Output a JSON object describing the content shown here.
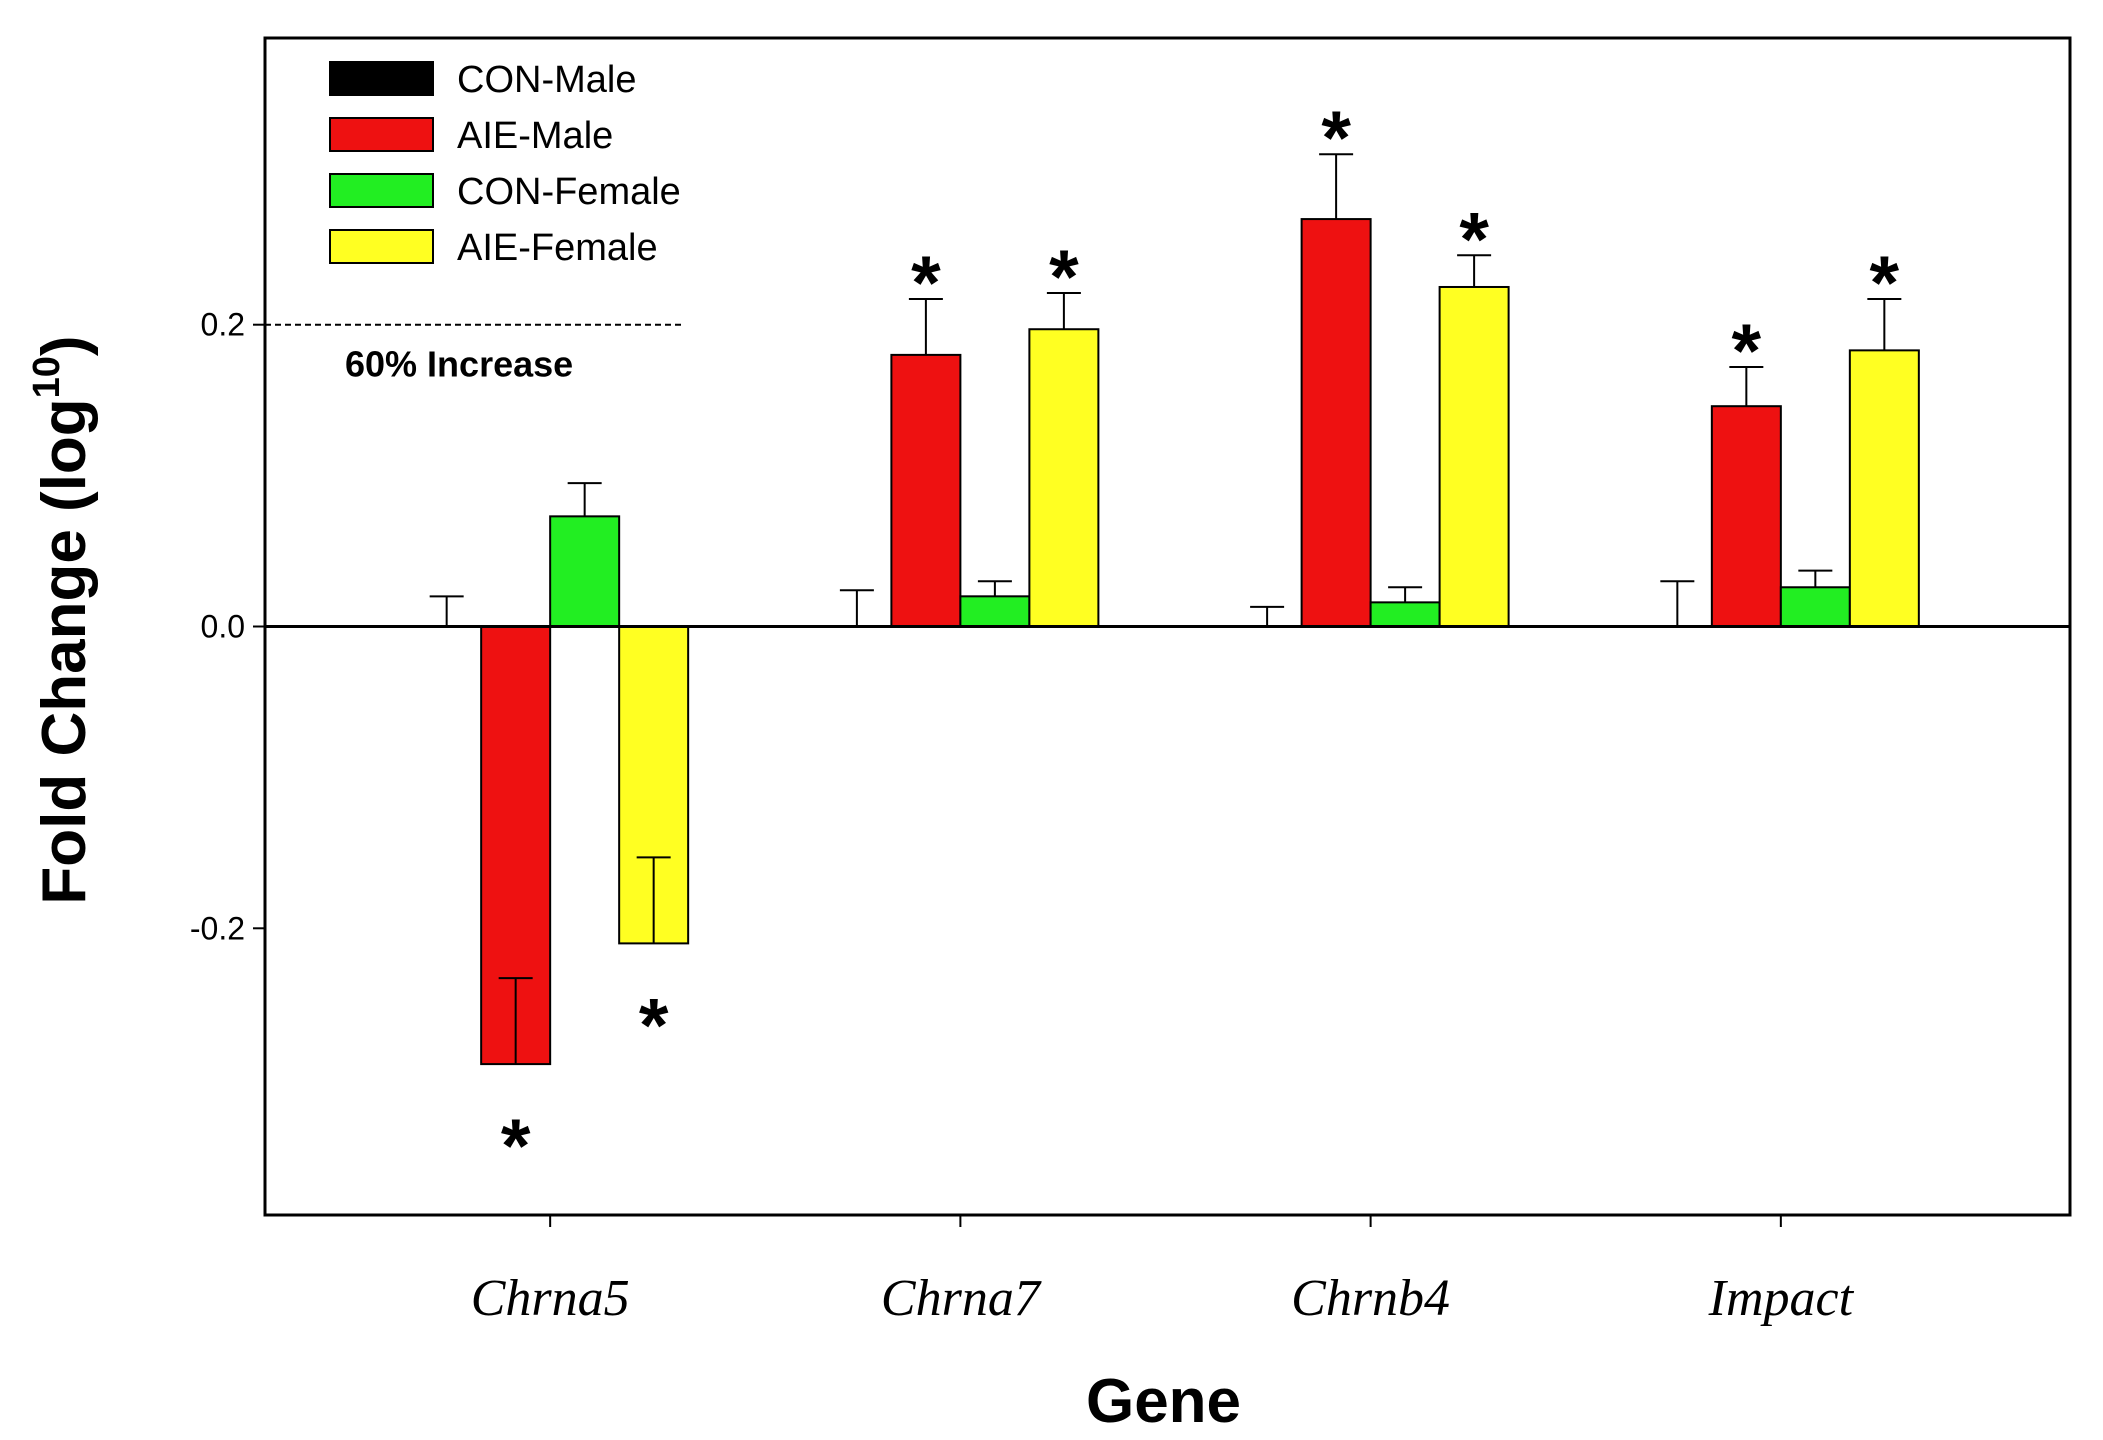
{
  "chart_data": {
    "type": "bar",
    "xlabel": "Gene",
    "ylabel": "Fold Change (log",
    "ylabel_sup": "10",
    "ylabel_close": ")",
    "categories": [
      "Chrna5",
      "Chrna7",
      "Chrnb4",
      "Impact"
    ],
    "ylim": [
      -0.39,
      0.39
    ],
    "yticks": [
      -0.2,
      0.0,
      0.2
    ],
    "ytick_labels": [
      "-0.2",
      "0.0",
      "0.2"
    ],
    "legend_position": "top-left",
    "grid": false,
    "series": [
      {
        "name": "CON-Male",
        "color": "#000000",
        "values": [
          0.0,
          0.0,
          0.0,
          0.0
        ],
        "errors": [
          0.02,
          0.024,
          0.013,
          0.03
        ]
      },
      {
        "name": "AIE-Male",
        "color": "#ee1111",
        "values": [
          -0.29,
          0.18,
          0.27,
          0.146
        ],
        "errors": [
          0.057,
          0.037,
          0.043,
          0.026
        ]
      },
      {
        "name": "CON-Female",
        "color": "#22ee22",
        "values": [
          0.073,
          0.02,
          0.016,
          0.026
        ],
        "errors": [
          0.022,
          0.01,
          0.01,
          0.011
        ]
      },
      {
        "name": "AIE-Female",
        "color": "#ffff22",
        "values": [
          -0.21,
          0.197,
          0.225,
          0.183
        ],
        "errors": [
          0.057,
          0.024,
          0.021,
          0.034
        ]
      }
    ],
    "significance_marker": "*",
    "significant": [
      [
        false,
        false,
        false,
        false
      ],
      [
        true,
        true,
        true,
        true
      ],
      [
        false,
        false,
        false,
        false
      ],
      [
        true,
        true,
        true,
        true
      ]
    ],
    "reference_line": {
      "y": 0.2,
      "label": "60% Increase"
    }
  }
}
